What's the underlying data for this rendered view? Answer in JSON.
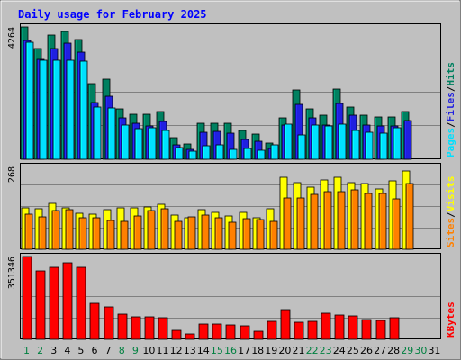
{
  "chart_data": [
    {
      "type": "bar",
      "title": "Daily usage for February 2025",
      "y_max_label": "4264",
      "ylim": [
        0,
        4264
      ],
      "categories": [
        "1",
        "2",
        "3",
        "4",
        "5",
        "6",
        "7",
        "8",
        "9",
        "10",
        "11",
        "12",
        "13",
        "14",
        "15",
        "16",
        "17",
        "18",
        "19",
        "20",
        "21",
        "22",
        "23",
        "24",
        "25",
        "26",
        "27",
        "28",
        "29",
        "30",
        "31"
      ],
      "category_colors": [
        "#008040",
        "#008040",
        "#000000",
        "#000000",
        "#000000",
        "#000000",
        "#000000",
        "#008040",
        "#008040",
        "#000000",
        "#000000",
        "#000000",
        "#000000",
        "#000000",
        "#008040",
        "#008040",
        "#000000",
        "#000000",
        "#000000",
        "#000000",
        "#000000",
        "#008040",
        "#008040",
        "#000000",
        "#000000",
        "#000000",
        "#000000",
        "#000000",
        "#008040",
        "#008040",
        "#000000"
      ],
      "legend": [
        "Pages",
        "/",
        "Files",
        "/",
        "Hits"
      ],
      "series": [
        {
          "name": "Hits",
          "color": "#008060",
          "values": [
            4264,
            3580,
            3990,
            4110,
            3870,
            2440,
            2580,
            1610,
            1440,
            1450,
            1530,
            700,
            490,
            1160,
            1170,
            1150,
            940,
            820,
            510,
            1320,
            2220,
            1630,
            1410,
            2270,
            1690,
            1410,
            1350,
            1370,
            1530,
            0,
            0
          ]
        },
        {
          "name": "Files",
          "color": "#2020e0",
          "values": [
            3830,
            3220,
            3560,
            3740,
            3460,
            1830,
            2020,
            1330,
            1170,
            1060,
            1210,
            470,
            330,
            880,
            900,
            850,
            640,
            570,
            350,
            1100,
            1760,
            1340,
            1100,
            1790,
            1420,
            1100,
            1070,
            1060,
            1240,
            0,
            0
          ]
        },
        {
          "name": "Pages",
          "color": "#00e0ff",
          "values": [
            3780,
            3180,
            3190,
            3200,
            3150,
            1670,
            1640,
            1090,
            1000,
            1010,
            930,
            380,
            260,
            430,
            470,
            320,
            340,
            300,
            460,
            1130,
            770,
            1110,
            1070,
            1120,
            920,
            860,
            850,
            1020,
            0,
            0,
            0
          ]
        }
      ]
    },
    {
      "type": "bar",
      "y_max_label": "268",
      "ylim": [
        0,
        268
      ],
      "categories": [
        "1",
        "2",
        "3",
        "4",
        "5",
        "6",
        "7",
        "8",
        "9",
        "10",
        "11",
        "12",
        "13",
        "14",
        "15",
        "16",
        "17",
        "18",
        "19",
        "20",
        "21",
        "22",
        "23",
        "24",
        "25",
        "26",
        "27",
        "28",
        "29",
        "30",
        "31"
      ],
      "legend": [
        "Sites",
        "/",
        "Visits"
      ],
      "series": [
        {
          "name": "Visits",
          "color": "#ffff00",
          "values": [
            135,
            131,
            150,
            133,
            116,
            115,
            127,
            135,
            133,
            136,
            146,
            110,
            101,
            127,
            119,
            107,
            120,
            101,
            130,
            232,
            215,
            200,
            224,
            234,
            215,
            213,
            196,
            220,
            252,
            0,
            0
          ]
        },
        {
          "name": "Sites",
          "color": "#ff8000",
          "values": [
            114,
            106,
            125,
            128,
            102,
            101,
            92,
            90,
            108,
            125,
            130,
            89,
            105,
            112,
            102,
            88,
            99,
            95,
            90,
            167,
            166,
            179,
            187,
            187,
            192,
            180,
            181,
            163,
            214,
            0,
            0
          ]
        }
      ]
    },
    {
      "type": "bar",
      "y_max_label": "351346",
      "ylim": [
        0,
        351346
      ],
      "categories": [
        "1",
        "2",
        "3",
        "4",
        "5",
        "6",
        "7",
        "8",
        "9",
        "10",
        "11",
        "12",
        "13",
        "14",
        "15",
        "16",
        "17",
        "18",
        "19",
        "20",
        "21",
        "22",
        "23",
        "24",
        "25",
        "26",
        "27",
        "28",
        "29",
        "30",
        "31"
      ],
      "legend": [
        "KBytes"
      ],
      "series": [
        {
          "name": "KBytes",
          "color": "#ff0000",
          "values": [
            351346,
            290330,
            305000,
            326000,
            307000,
            154000,
            138000,
            107000,
            94000,
            97000,
            90000,
            38000,
            22000,
            65000,
            66000,
            60000,
            58000,
            35000,
            78000,
            127000,
            74000,
            75000,
            111000,
            105000,
            98000,
            85000,
            80000,
            90000,
            0,
            0,
            0
          ]
        }
      ]
    }
  ]
}
